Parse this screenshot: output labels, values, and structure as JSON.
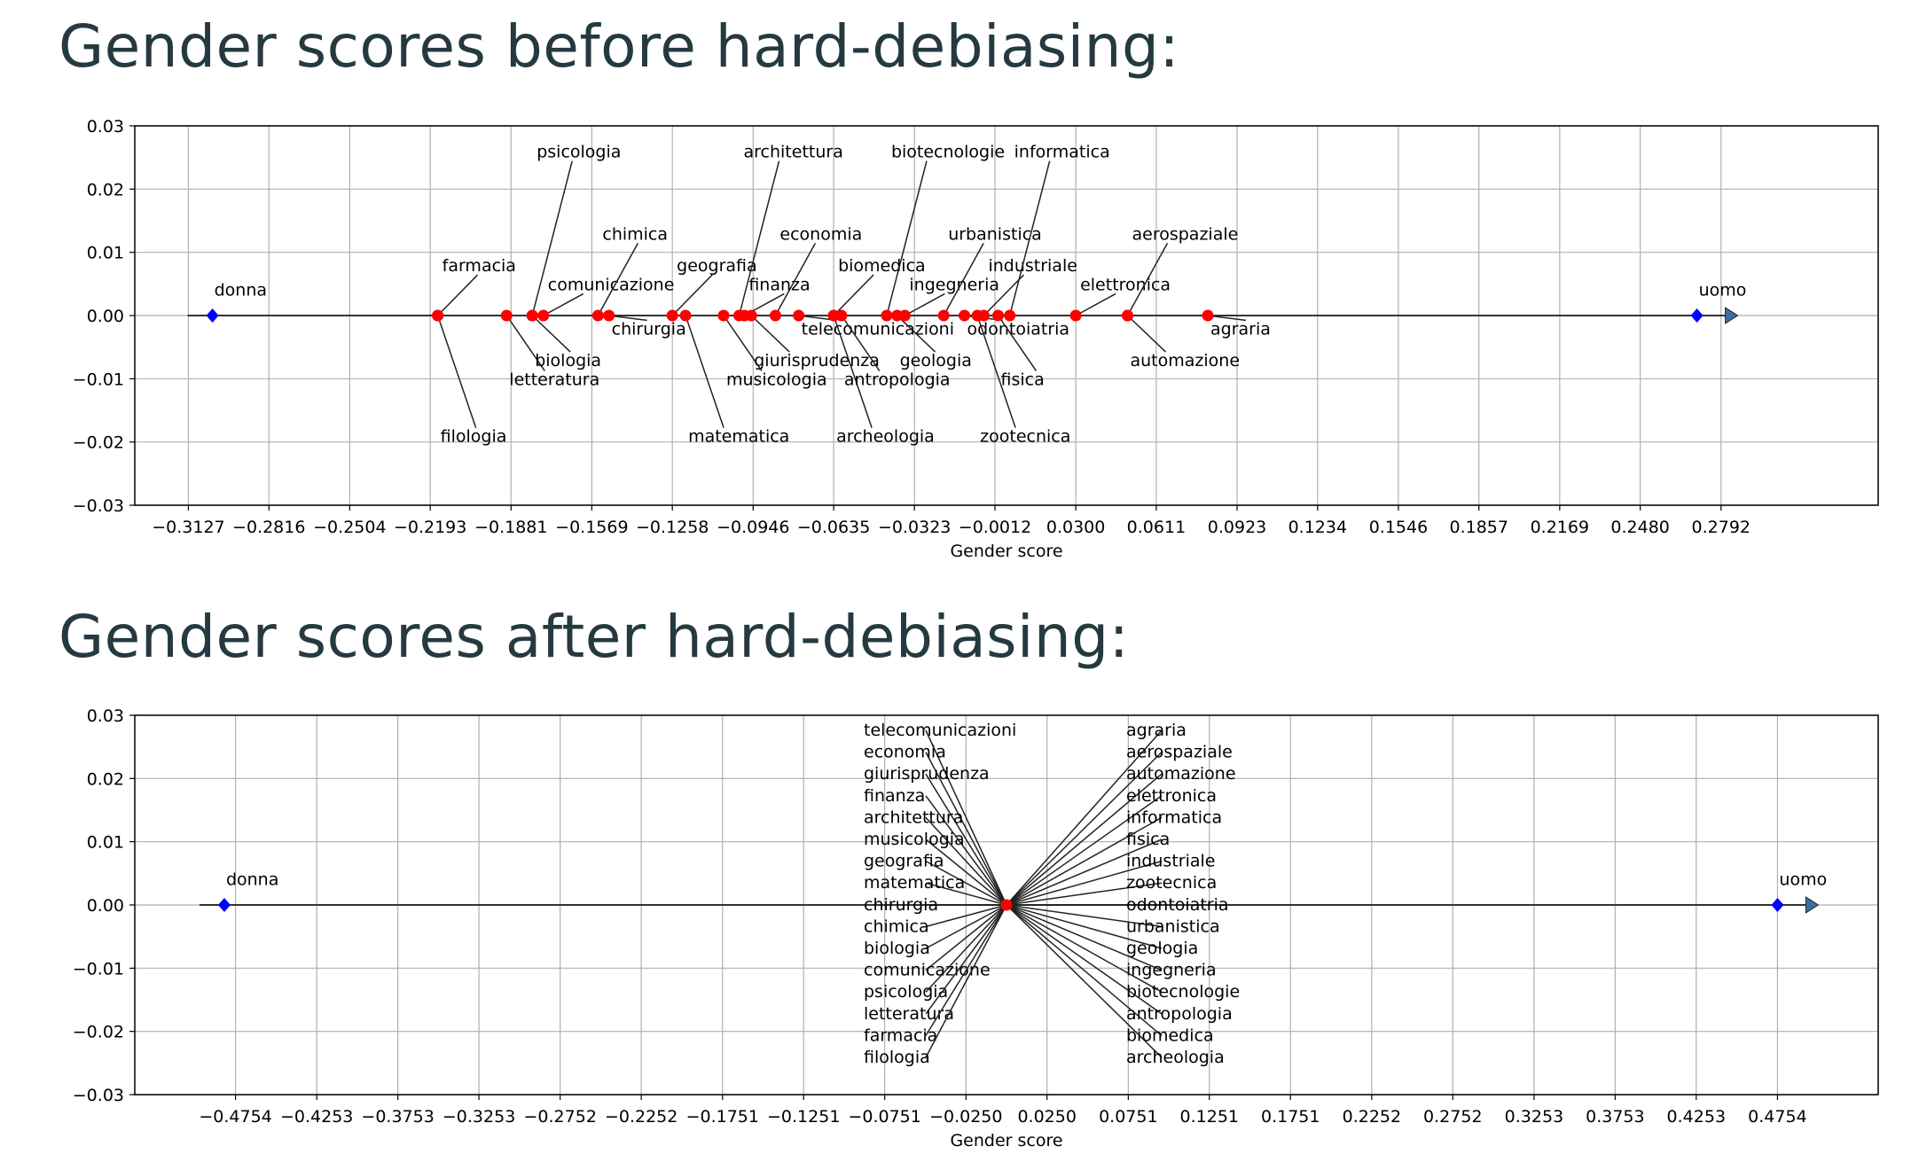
{
  "headings": {
    "before": "Gender scores before hard-debiasing:",
    "after": "Gender scores after hard-debiasing:"
  },
  "colors": {
    "anchor": "#0000ff",
    "word": "#ff0000",
    "axis_line": "#333333",
    "grid": "#b0b0b0",
    "arrow": "#3a6ea5"
  },
  "chart_data": [
    {
      "type": "scatter",
      "title": "",
      "xlabel": "Gender score",
      "ylabel": "",
      "xlim": [
        -0.3334,
        0.3399
      ],
      "ylim": [
        -0.03,
        0.03
      ],
      "grid": true,
      "x_ticks": [
        -0.3127,
        -0.2816,
        -0.2504,
        -0.2193,
        -0.1881,
        -0.1569,
        -0.1258,
        -0.0946,
        -0.0635,
        -0.0323,
        -0.0012,
        0.03,
        0.0611,
        0.0923,
        0.1234,
        0.1546,
        0.1857,
        0.2169,
        0.248,
        0.2792
      ],
      "x_tick_labels": [
        "−0.3127",
        "−0.2816",
        "−0.2504",
        "−0.2193",
        "−0.1881",
        "−0.1569",
        "−0.1258",
        "−0.0946",
        "−0.0635",
        "−0.0323",
        "−0.0012",
        "0.0300",
        "0.0611",
        "0.0923",
        "0.1234",
        "0.1546",
        "0.1857",
        "0.2169",
        "0.2480",
        "0.2792"
      ],
      "y_ticks": [
        0.03,
        0.02,
        0.01,
        0.0,
        -0.01,
        -0.02,
        -0.03
      ],
      "y_tick_labels": [
        "0.03",
        "0.02",
        "0.01",
        "0.00",
        "−0.01",
        "−0.02",
        "−0.03"
      ],
      "anchors": [
        {
          "name": "donna",
          "x": -0.3034,
          "label_y": 0.004
        },
        {
          "name": "uomo",
          "x": 0.2699,
          "label_y": 0.004
        }
      ],
      "points": [
        {
          "name": "farmacia",
          "x": -0.2164,
          "label_y": 0.007
        },
        {
          "name": "filologia",
          "x": -0.2164,
          "label_y": -0.02
        },
        {
          "name": "letteratura",
          "x": -0.1898,
          "label_y": -0.011
        },
        {
          "name": "psicologia",
          "x": -0.1799,
          "label_y": 0.025
        },
        {
          "name": "biologia",
          "x": -0.1799,
          "label_y": -0.008
        },
        {
          "name": "comunicazione",
          "x": -0.1756,
          "label_y": 0.004
        },
        {
          "name": "chimica",
          "x": -0.1545,
          "label_y": 0.012
        },
        {
          "name": "chirurgia",
          "x": -0.1503,
          "label_y": -0.003
        },
        {
          "name": "geografia",
          "x": -0.1258,
          "label_y": 0.007
        },
        {
          "name": "matematica",
          "x": -0.1207,
          "label_y": -0.02
        },
        {
          "name": "musicologia",
          "x": -0.106,
          "label_y": -0.011
        },
        {
          "name": "architettura",
          "x": -0.1,
          "label_y": 0.025
        },
        {
          "name": "finanza",
          "x": -0.098,
          "label_y": 0.004
        },
        {
          "name": "giurisprudenza",
          "x": -0.0953,
          "label_y": -0.008
        },
        {
          "name": "economia",
          "x": -0.086,
          "label_y": 0.012
        },
        {
          "name": "telecomunicazioni",
          "x": -0.077,
          "label_y": -0.003
        },
        {
          "name": "biomedica",
          "x": -0.0635,
          "label_y": 0.007
        },
        {
          "name": "archeologia",
          "x": -0.0635,
          "label_y": -0.02
        },
        {
          "name": "antropologia",
          "x": -0.0605,
          "label_y": -0.011
        },
        {
          "name": "biotecnologie",
          "x": -0.043,
          "label_y": 0.025
        },
        {
          "name": "geologia",
          "x": -0.039,
          "label_y": -0.008
        },
        {
          "name": "ingegneria",
          "x": -0.036,
          "label_y": 0.004
        },
        {
          "name": "urbanistica",
          "x": -0.021,
          "label_y": 0.012
        },
        {
          "name": "odontoiatria",
          "x": -0.013,
          "label_y": -0.003
        },
        {
          "name": "zootecnica",
          "x": -0.008,
          "label_y": -0.02
        },
        {
          "name": "industriale",
          "x": -0.0055,
          "label_y": 0.007
        },
        {
          "name": "fisica",
          "x": 0.0,
          "label_y": -0.011
        },
        {
          "name": "informatica",
          "x": 0.0045,
          "label_y": 0.025
        },
        {
          "name": "elettronica",
          "x": 0.03,
          "label_y": 0.004
        },
        {
          "name": "aerospaziale",
          "x": 0.05,
          "label_y": 0.012
        },
        {
          "name": "automazione",
          "x": 0.05,
          "label_y": -0.008
        },
        {
          "name": "agraria",
          "x": 0.081,
          "label_y": -0.003
        }
      ]
    },
    {
      "type": "scatter",
      "title": "",
      "xlabel": "Gender score",
      "ylabel": "",
      "xlim": [
        -0.5375,
        0.5375
      ],
      "ylim": [
        -0.03,
        0.03
      ],
      "grid": true,
      "x_ticks": [
        -0.4754,
        -0.4253,
        -0.3753,
        -0.3253,
        -0.2752,
        -0.2252,
        -0.1751,
        -0.1251,
        -0.0751,
        -0.025,
        0.025,
        0.0751,
        0.1251,
        0.1751,
        0.2252,
        0.2752,
        0.3253,
        0.3753,
        0.4253,
        0.4754
      ],
      "x_tick_labels": [
        "−0.4754",
        "−0.4253",
        "−0.3753",
        "−0.3253",
        "−0.2752",
        "−0.2252",
        "−0.1751",
        "−0.1251",
        "−0.0751",
        "−0.0250",
        "0.0250",
        "0.0751",
        "0.1251",
        "0.1751",
        "0.2252",
        "0.2752",
        "0.3253",
        "0.3753",
        "0.4253",
        "0.4754"
      ],
      "y_ticks": [
        0.03,
        0.02,
        0.01,
        0.0,
        -0.01,
        -0.02,
        -0.03
      ],
      "y_tick_labels": [
        "0.03",
        "0.02",
        "0.01",
        "0.00",
        "−0.01",
        "−0.02",
        "−0.03"
      ],
      "anchors": [
        {
          "name": "donna",
          "x": -0.4823,
          "label_y": 0.004
        },
        {
          "name": "uomo",
          "x": 0.4754,
          "label_y": 0.004
        }
      ],
      "points_x": 0.0,
      "labels_left": [
        "telecomunicazioni",
        "economia",
        "giurisprudenza",
        "finanza",
        "architettura",
        "musicologia",
        "geografia",
        "matematica",
        "chirurgia",
        "chimica",
        "biologia",
        "comunicazione",
        "psicologia",
        "letteratura",
        "farmacia",
        "filologia"
      ],
      "labels_right": [
        "agraria",
        "aerospaziale",
        "automazione",
        "elettronica",
        "informatica",
        "fisica",
        "industriale",
        "zootecnica",
        "odontoiatria",
        "urbanistica",
        "geologia",
        "ingegneria",
        "biotecnologie",
        "antropologia",
        "biomedica",
        "archeologia"
      ]
    }
  ]
}
